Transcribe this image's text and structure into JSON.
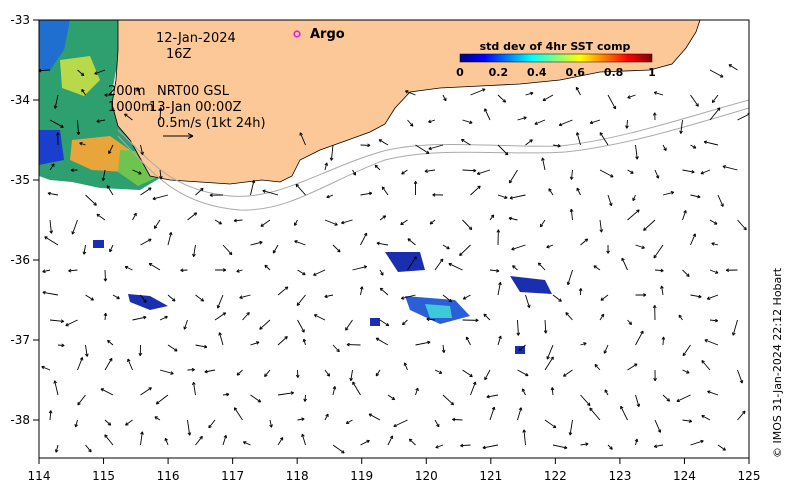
{
  "map": {
    "date_label": "12-Jan-2024",
    "time_label": "16Z",
    "argo_label": "Argo",
    "isobath_1": "200m",
    "isobath_2": "1000m",
    "product_label": "NRT00 GSL",
    "current_time_label": "13-Jan 00:00Z",
    "scale_label": "0.5m/s (1kt 24h)",
    "credit": "© IMOS 31-Jan-2024 22:12 Hobart",
    "land_color": "#fdc898",
    "colorbar": {
      "title": "std dev of 4hr SST comp",
      "ticks": [
        "0",
        "0.2",
        "0.4",
        "0.6",
        "0.8",
        "1"
      ],
      "colors": [
        "#00007f",
        "#0000ff",
        "#007fff",
        "#00ffff",
        "#7fff7f",
        "#ffff00",
        "#ff7f00",
        "#ff0000",
        "#7f0000"
      ]
    },
    "x_ticks": [
      "114",
      "115",
      "116",
      "117",
      "118",
      "119",
      "120",
      "121",
      "122",
      "123",
      "124",
      "125"
    ],
    "y_ticks": [
      "-33",
      "-34",
      "-35",
      "-36",
      "-37",
      "-38"
    ]
  }
}
